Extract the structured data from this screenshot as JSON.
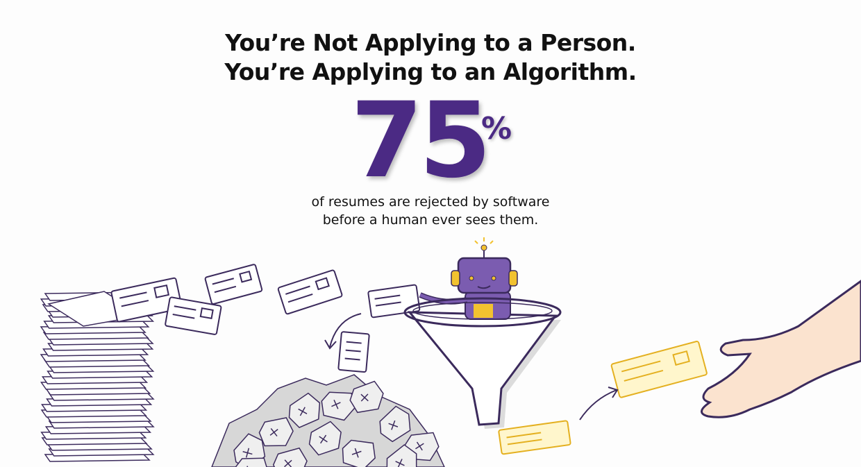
{
  "headline": {
    "line1": "You’re Not Applying to a Person.",
    "line2": "You’re Applying to an Algorithm."
  },
  "stat": {
    "number": "75",
    "unit": "%"
  },
  "caption": {
    "line1": "of resumes are rejected by software",
    "line2": "before a human ever sees them."
  },
  "colors": {
    "accent": "#4b2a84",
    "robot": "#7b5cb0",
    "gold": "#f2c230",
    "text": "#111111"
  },
  "illustration": [
    "paper-stack",
    "flying-resumes",
    "robot-in-funnel",
    "crumpled-paper-pile",
    "approved-resumes",
    "human-hand"
  ]
}
